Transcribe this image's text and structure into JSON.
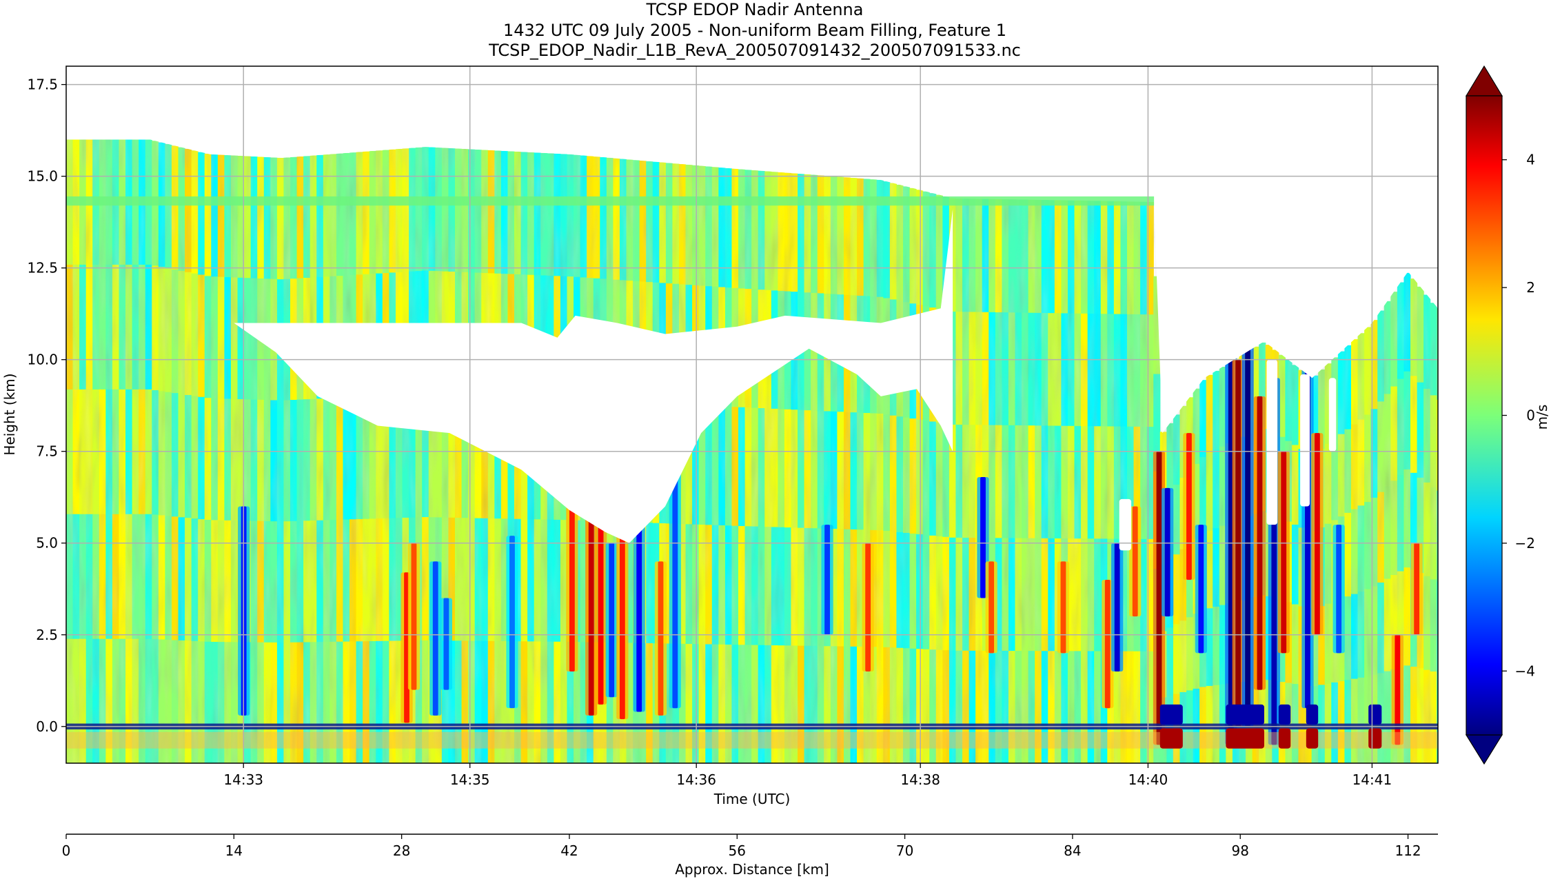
{
  "chart_data": {
    "type": "heatmap",
    "title_lines": [
      "TCSP EDOP Nadir Antenna",
      "1432 UTC 09 July 2005 - Non-uniform Beam Filling, Feature 1",
      "TCSP_EDOP_Nadir_L1B_RevA_200507091432_200507091533.nc"
    ],
    "xlabel": "Time (UTC)",
    "ylabel": "Height (km)",
    "x_time_ticks": [
      "14:33",
      "14:35",
      "14:36",
      "14:38",
      "14:40",
      "14:41"
    ],
    "x_time_tick_positions_km": [
      14.8,
      33.7,
      52.6,
      71.3,
      90.3,
      109.0
    ],
    "ylim": [
      -1.0,
      18.0
    ],
    "y_ticks": [
      0.0,
      2.5,
      5.0,
      7.5,
      10.0,
      12.5,
      15.0,
      17.5
    ],
    "y_tick_labels": [
      "0.0",
      "2.5",
      "5.0",
      "7.5",
      "10.0",
      "12.5",
      "15.0",
      "17.5"
    ],
    "grid": true,
    "secondary_axis": {
      "label": "Approx. Distance [km]",
      "range": [
        0,
        112
      ],
      "ticks": [
        0,
        14,
        28,
        42,
        56,
        70,
        84,
        98,
        112
      ],
      "tick_labels": [
        "0",
        "14",
        "28",
        "42",
        "56",
        "70",
        "84",
        "98",
        "112"
      ]
    },
    "x_range_km": [
      0,
      114.5
    ],
    "colorbar": {
      "label": "m/s",
      "colormap": "jet",
      "vmin": -5,
      "vmax": 5,
      "extend": "both",
      "ticks": [
        -4,
        -2,
        0,
        2,
        4
      ],
      "tick_labels": [
        "−4",
        "−2",
        "0",
        "2",
        "4"
      ]
    },
    "echo_top_km": [
      [
        0,
        16.0
      ],
      [
        7,
        16.0
      ],
      [
        12,
        15.6
      ],
      [
        18,
        15.5
      ],
      [
        30,
        15.8
      ],
      [
        42,
        15.6
      ],
      [
        56,
        15.2
      ],
      [
        68,
        14.9
      ],
      [
        74,
        14.4
      ],
      [
        90.8,
        14.3
      ],
      [
        91.5,
        8.0
      ],
      [
        95,
        9.5
      ],
      [
        100,
        10.5
      ],
      [
        104,
        9.5
      ],
      [
        109,
        11.0
      ],
      [
        112,
        12.4
      ],
      [
        114.5,
        11.4
      ]
    ],
    "clear_air_gap": {
      "top_km": [
        [
          14.0,
          11.0
        ],
        [
          20,
          11.0
        ],
        [
          30,
          11.0
        ],
        [
          38,
          11.0
        ],
        [
          41,
          10.6
        ],
        [
          42.5,
          11.2
        ],
        [
          46,
          11.0
        ],
        [
          50,
          10.7
        ],
        [
          56,
          10.9
        ],
        [
          60,
          11.2
        ],
        [
          68,
          11.0
        ],
        [
          73,
          11.4
        ],
        [
          74,
          14.1
        ]
      ],
      "bottom_km": [
        [
          14.0,
          11.0
        ],
        [
          17.5,
          10.2
        ],
        [
          21,
          9.0
        ],
        [
          26,
          8.2
        ],
        [
          32,
          8.0
        ],
        [
          35,
          7.5
        ],
        [
          38,
          7.0
        ],
        [
          42,
          5.9
        ],
        [
          45,
          5.3
        ],
        [
          47,
          5.0
        ],
        [
          50,
          6.0
        ],
        [
          53,
          8.0
        ],
        [
          56,
          9.0
        ],
        [
          62,
          10.3
        ],
        [
          66,
          9.6
        ],
        [
          68,
          9.0
        ],
        [
          71,
          9.2
        ],
        [
          73,
          8.2
        ],
        [
          74,
          7.5
        ]
      ]
    },
    "cell_gaps_km": [
      [
        100.2,
        5.5,
        10.0,
        0.9
      ],
      [
        103.0,
        6.0,
        9.6,
        0.8
      ],
      [
        105.4,
        7.5,
        9.5,
        0.6
      ],
      [
        87.9,
        4.8,
        6.2,
        1.0
      ]
    ],
    "velocity_streaks": [
      [
        14.6,
        -3.5,
        0.3,
        6.0
      ],
      [
        28.2,
        3.5,
        0.1,
        4.2
      ],
      [
        28.8,
        3.0,
        1.0,
        5.0
      ],
      [
        30.6,
        -3.0,
        0.3,
        4.5
      ],
      [
        31.5,
        -2.8,
        1.0,
        3.5
      ],
      [
        37.0,
        -2.6,
        0.5,
        5.2
      ],
      [
        42.0,
        3.5,
        1.5,
        6.0
      ],
      [
        43.6,
        4.3,
        0.3,
        7.5
      ],
      [
        44.4,
        3.8,
        0.6,
        5.8
      ],
      [
        45.3,
        -3.2,
        0.8,
        5.0
      ],
      [
        46.2,
        3.5,
        0.2,
        5.5
      ],
      [
        47.6,
        -3.8,
        0.4,
        6.0
      ],
      [
        49.4,
        3.0,
        0.3,
        4.5
      ],
      [
        50.6,
        -3.0,
        0.5,
        7.8
      ],
      [
        63.3,
        -3.2,
        2.5,
        5.5
      ],
      [
        66.7,
        3.2,
        1.5,
        5.0
      ],
      [
        76.3,
        -3.8,
        3.5,
        6.8
      ],
      [
        77.0,
        3.0,
        2.0,
        4.5
      ],
      [
        83.0,
        3.0,
        2.0,
        4.5
      ],
      [
        86.7,
        3.2,
        0.5,
        4.0
      ],
      [
        87.5,
        -4.2,
        1.5,
        5.0
      ],
      [
        89.0,
        3.0,
        3.0,
        6.0
      ],
      [
        91.0,
        4.8,
        -0.5,
        7.5
      ],
      [
        91.7,
        -4.2,
        3.0,
        6.5
      ],
      [
        93.5,
        3.5,
        4.0,
        8.0
      ],
      [
        94.5,
        -3.6,
        2.0,
        5.5
      ],
      [
        97.0,
        -4.8,
        -0.5,
        10.2
      ],
      [
        97.6,
        4.8,
        0.0,
        10.0
      ],
      [
        98.4,
        -5.0,
        0.0,
        10.4
      ],
      [
        99.4,
        4.5,
        1.0,
        9.0
      ],
      [
        100.6,
        -4.5,
        -0.5,
        9.5
      ],
      [
        101.4,
        4.2,
        2.0,
        7.5
      ],
      [
        103.4,
        -4.2,
        0.5,
        10.0
      ],
      [
        104.2,
        4.0,
        2.5,
        8.0
      ],
      [
        106.0,
        -3.0,
        2.0,
        5.5
      ],
      [
        110.9,
        3.8,
        -0.5,
        2.5
      ],
      [
        112.5,
        3.3,
        2.5,
        5.0
      ]
    ],
    "surface_band_km": [
      -0.6,
      0.6
    ]
  }
}
